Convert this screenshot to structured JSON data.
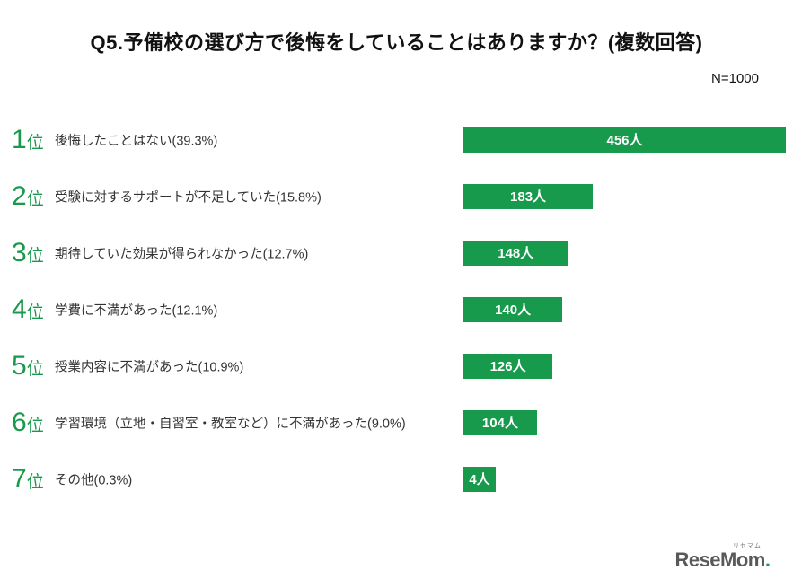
{
  "colors": {
    "accent": "#189a4c",
    "bar": "#189a4c",
    "bar_label_text": "#ffffff",
    "title_text": "#111111",
    "category_text": "#333333"
  },
  "chart_data": {
    "type": "bar",
    "orientation": "horizontal",
    "title": "Q5.予備校の選び方で後悔をしていることはありますか？(複数回答)",
    "n_label": "N=1000",
    "legend": false,
    "grid": false,
    "xlim": [
      0,
      456
    ],
    "rank_numbers": [
      "1",
      "2",
      "3",
      "4",
      "5",
      "6",
      "7"
    ],
    "rank_suffix": "位",
    "categories": [
      "後悔したことはない(39.3%)",
      "受験に対するサポートが不足していた(15.8%)",
      "期待していた効果が得られなかった(12.7%)",
      "学費に不満があった(12.1%)",
      "授業内容に不満があった(10.9%)",
      "学習環境（立地・自習室・教室など）に不満があった(9.0%)",
      "その他(0.3%)"
    ],
    "values": [
      456,
      183,
      148,
      140,
      126,
      104,
      4
    ],
    "value_labels": [
      "456人",
      "183人",
      "148人",
      "140人",
      "126人",
      "104人",
      "4人"
    ],
    "percentages": [
      39.3,
      15.8,
      12.7,
      12.1,
      10.9,
      9.0,
      0.3
    ]
  },
  "logo": {
    "kana": "リセマム",
    "part1": "Rese",
    "part2": "Mom",
    "dot": "."
  }
}
